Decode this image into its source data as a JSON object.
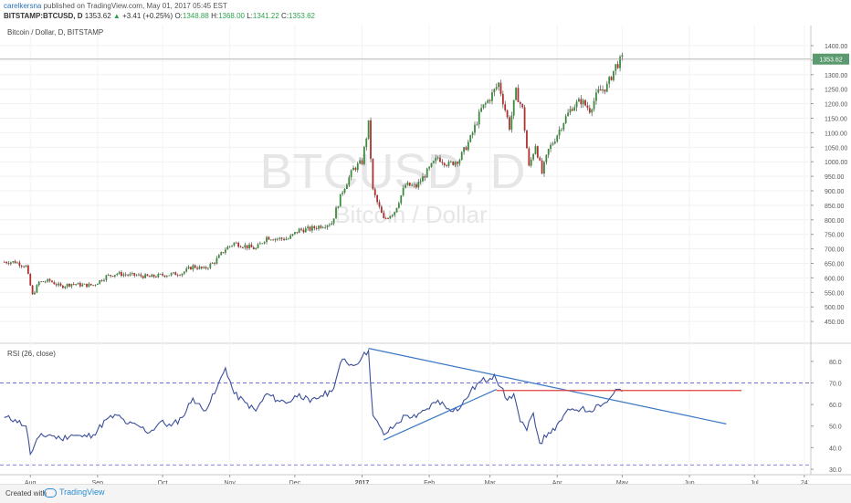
{
  "header": {
    "author": "carelkersna",
    "published_text": "published on TradingView.com, May 01, 2017 05:45 EST",
    "symbol": "BITSTAMP:BTCUSD, D",
    "last_price": "1353.62",
    "change": "+3.41 (+0.25%)",
    "o_label": "O:",
    "o_value": "1348.88",
    "h_label": "H:",
    "h_value": "1368.00",
    "l_label": "L:",
    "l_value": "1341.22",
    "c_label": "C:",
    "c_value": "1353.62"
  },
  "footer": {
    "created_with": "Created with",
    "brand": "TradingView"
  },
  "chart_data": [
    {
      "type": "candlestick",
      "title": "Bitcoin / Dollar, D, BITSTAMP",
      "watermark_symbol": "BTCUSD, D",
      "watermark_name": "Bitcoin / Dollar",
      "last_price_label": "1353.62",
      "ylim": [
        400,
        1400
      ],
      "yticks": [
        "1400.00",
        "1350.00",
        "1300.00",
        "1250.00",
        "1200.00",
        "1150.00",
        "1100.00",
        "1050.00",
        "1000.00",
        "950.00",
        "900.00",
        "850.00",
        "800.00",
        "750.00",
        "700.00",
        "650.00",
        "600.00",
        "550.00",
        "500.00",
        "450.00"
      ],
      "xticks": [
        "Aug",
        "Sep",
        "Oct",
        "Nov",
        "Dec",
        "2017",
        "Feb",
        "Mar",
        "Apr",
        "May",
        "Jun",
        "Jul",
        "24"
      ],
      "close_path": [
        [
          "2016-07-20",
          655
        ],
        [
          "2016-07-25",
          655
        ],
        [
          "2016-07-30",
          640
        ],
        [
          "2016-08-02",
          540
        ],
        [
          "2016-08-05",
          585
        ],
        [
          "2016-08-10",
          590
        ],
        [
          "2016-08-15",
          570
        ],
        [
          "2016-08-20",
          580
        ],
        [
          "2016-08-25",
          575
        ],
        [
          "2016-08-30",
          575
        ],
        [
          "2016-09-05",
          605
        ],
        [
          "2016-09-10",
          615
        ],
        [
          "2016-09-15",
          610
        ],
        [
          "2016-09-20",
          608
        ],
        [
          "2016-09-25",
          603
        ],
        [
          "2016-09-30",
          609
        ],
        [
          "2016-10-05",
          612
        ],
        [
          "2016-10-10",
          617
        ],
        [
          "2016-10-15",
          640
        ],
        [
          "2016-10-20",
          630
        ],
        [
          "2016-10-25",
          655
        ],
        [
          "2016-10-30",
          700
        ],
        [
          "2016-11-03",
          720
        ],
        [
          "2016-11-08",
          710
        ],
        [
          "2016-11-13",
          700
        ],
        [
          "2016-11-18",
          740
        ],
        [
          "2016-11-23",
          735
        ],
        [
          "2016-11-28",
          735
        ],
        [
          "2016-12-03",
          765
        ],
        [
          "2016-12-08",
          768
        ],
        [
          "2016-12-13",
          780
        ],
        [
          "2016-12-18",
          790
        ],
        [
          "2016-12-23",
          900
        ],
        [
          "2016-12-28",
          975
        ],
        [
          "2017-01-01",
          1000
        ],
        [
          "2017-01-04",
          1130
        ],
        [
          "2017-01-06",
          900
        ],
        [
          "2017-01-11",
          800
        ],
        [
          "2017-01-16",
          830
        ],
        [
          "2017-01-21",
          920
        ],
        [
          "2017-01-26",
          915
        ],
        [
          "2017-01-31",
          965
        ],
        [
          "2017-02-05",
          1015
        ],
        [
          "2017-02-10",
          990
        ],
        [
          "2017-02-15",
          1010
        ],
        [
          "2017-02-20",
          1080
        ],
        [
          "2017-02-25",
          1180
        ],
        [
          "2017-03-01",
          1220
        ],
        [
          "2017-03-05",
          1270
        ],
        [
          "2017-03-08",
          1180
        ],
        [
          "2017-03-10",
          1120
        ],
        [
          "2017-03-13",
          1240
        ],
        [
          "2017-03-16",
          1180
        ],
        [
          "2017-03-19",
          980
        ],
        [
          "2017-03-22",
          1060
        ],
        [
          "2017-03-25",
          960
        ],
        [
          "2017-03-28",
          1040
        ],
        [
          "2017-03-31",
          1080
        ],
        [
          "2017-04-04",
          1140
        ],
        [
          "2017-04-08",
          1190
        ],
        [
          "2017-04-12",
          1210
        ],
        [
          "2017-04-16",
          1180
        ],
        [
          "2017-04-20",
          1240
        ],
        [
          "2017-04-24",
          1260
        ],
        [
          "2017-04-28",
          1330
        ],
        [
          "2017-05-01",
          1353.62
        ]
      ]
    },
    {
      "type": "line",
      "title": "RSI (26, close)",
      "ylim": [
        30,
        85
      ],
      "yticks": [
        "80.0",
        "70.0",
        "60.0",
        "50.0",
        "40.0",
        "30.0"
      ],
      "levels": [
        70,
        32
      ],
      "series": [
        {
          "values": [
            [
              "2016-07-20",
              54
            ],
            [
              "2016-07-25",
              53
            ],
            [
              "2016-07-30",
              50
            ],
            [
              "2016-08-01",
              37
            ],
            [
              "2016-08-05",
              45
            ],
            [
              "2016-08-10",
              46
            ],
            [
              "2016-08-15",
              44
            ],
            [
              "2016-08-20",
              46
            ],
            [
              "2016-08-25",
              45
            ],
            [
              "2016-08-30",
              46
            ],
            [
              "2016-09-05",
              53
            ],
            [
              "2016-09-10",
              55
            ],
            [
              "2016-09-15",
              51
            ],
            [
              "2016-09-20",
              50
            ],
            [
              "2016-09-25",
              47
            ],
            [
              "2016-09-30",
              52
            ],
            [
              "2016-10-05",
              50
            ],
            [
              "2016-10-10",
              54
            ],
            [
              "2016-10-15",
              63
            ],
            [
              "2016-10-20",
              57
            ],
            [
              "2016-10-25",
              65
            ],
            [
              "2016-10-30",
              77
            ],
            [
              "2016-11-03",
              65
            ],
            [
              "2016-11-08",
              61
            ],
            [
              "2016-11-13",
              57
            ],
            [
              "2016-11-18",
              65
            ],
            [
              "2016-11-23",
              62
            ],
            [
              "2016-11-28",
              61
            ],
            [
              "2016-12-03",
              65
            ],
            [
              "2016-12-08",
              61
            ],
            [
              "2016-12-13",
              64
            ],
            [
              "2016-12-18",
              66
            ],
            [
              "2016-12-23",
              81
            ],
            [
              "2016-12-28",
              78
            ],
            [
              "2017-01-01",
              82
            ],
            [
              "2017-01-04",
              85
            ],
            [
              "2017-01-06",
              55
            ],
            [
              "2017-01-11",
              46
            ],
            [
              "2017-01-16",
              50
            ],
            [
              "2017-01-21",
              55
            ],
            [
              "2017-01-26",
              54
            ],
            [
              "2017-01-31",
              58
            ],
            [
              "2017-02-05",
              62
            ],
            [
              "2017-02-10",
              58
            ],
            [
              "2017-02-15",
              58
            ],
            [
              "2017-02-20",
              66
            ],
            [
              "2017-02-25",
              71
            ],
            [
              "2017-03-01",
              72
            ],
            [
              "2017-03-03",
              74
            ],
            [
              "2017-03-06",
              68
            ],
            [
              "2017-03-09",
              62
            ],
            [
              "2017-03-12",
              65
            ],
            [
              "2017-03-15",
              52
            ],
            [
              "2017-03-18",
              48
            ],
            [
              "2017-03-21",
              56
            ],
            [
              "2017-03-24",
              42
            ],
            [
              "2017-03-28",
              47
            ],
            [
              "2017-03-31",
              48
            ],
            [
              "2017-04-04",
              55
            ],
            [
              "2017-04-08",
              58
            ],
            [
              "2017-04-12",
              58
            ],
            [
              "2017-04-16",
              57
            ],
            [
              "2017-04-20",
              60
            ],
            [
              "2017-04-24",
              61
            ],
            [
              "2017-04-28",
              67
            ],
            [
              "2017-05-01",
              66
            ]
          ]
        }
      ],
      "trendlines": [
        {
          "color": "#3a78c4",
          "from": [
            "2017-01-04",
            86
          ],
          "to": [
            "2017-06-18",
            51
          ]
        },
        {
          "color": "#3a78c4",
          "from": [
            "2017-01-11",
            43.5
          ],
          "to": [
            "2017-03-04",
            67
          ]
        },
        {
          "color": "#e04040",
          "from": [
            "2017-03-04",
            66.5
          ],
          "to": [
            "2017-06-25",
            66.5
          ]
        }
      ]
    }
  ]
}
